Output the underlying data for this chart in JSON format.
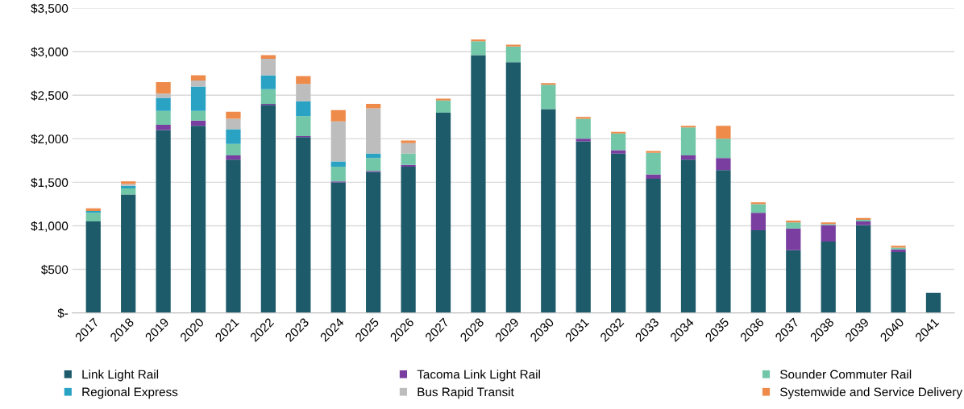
{
  "chart_data": {
    "type": "bar",
    "stacked": true,
    "grid": "y",
    "legend": "bottom",
    "categories": [
      "2017",
      "2018",
      "2019",
      "2020",
      "2021",
      "2022",
      "2023",
      "2024",
      "2025",
      "2026",
      "2027",
      "2028",
      "2029",
      "2030",
      "2031",
      "2032",
      "2033",
      "2034",
      "2035",
      "2036",
      "2037",
      "2038",
      "2039",
      "2040",
      "2041"
    ],
    "ylim": [
      0,
      3500
    ],
    "yticks": [
      {
        "value": 0,
        "label": "$-"
      },
      {
        "value": 500,
        "label": "$500"
      },
      {
        "value": 1000,
        "label": "$1,000"
      },
      {
        "value": 1500,
        "label": "$1,500"
      },
      {
        "value": 2000,
        "label": "$2,000"
      },
      {
        "value": 2500,
        "label": "$2,500"
      },
      {
        "value": 3000,
        "label": "$3,000"
      },
      {
        "value": 3500,
        "label": "$3,500"
      }
    ],
    "series": [
      {
        "name": "Link Light Rail",
        "color": "#1d5a6a",
        "values": [
          1050,
          1360,
          2100,
          2150,
          1760,
          2390,
          2020,
          1500,
          1620,
          1680,
          2300,
          2960,
          2880,
          2340,
          1970,
          1830,
          1540,
          1760,
          1640,
          950,
          720,
          820,
          1010,
          700,
          230
        ]
      },
      {
        "name": "Tacoma Link Light Rail",
        "color": "#7a3ea0",
        "values": [
          null,
          null,
          60,
          60,
          50,
          10,
          10,
          10,
          10,
          20,
          0,
          0,
          0,
          0,
          30,
          40,
          50,
          50,
          140,
          200,
          250,
          190,
          40,
          30,
          0
        ]
      },
      {
        "name": "Sounder Commuter Rail",
        "color": "#72c7a8",
        "values": [
          100,
          70,
          160,
          110,
          130,
          170,
          230,
          170,
          150,
          130,
          140,
          160,
          180,
          280,
          230,
          190,
          250,
          320,
          220,
          100,
          70,
          10,
          20,
          20,
          0
        ]
      },
      {
        "name": "Regional Express",
        "color": "#2aa2c4",
        "values": [
          20,
          30,
          150,
          280,
          170,
          160,
          170,
          60,
          50,
          0,
          0,
          0,
          0,
          0,
          0,
          0,
          0,
          0,
          0,
          0,
          0,
          0,
          0,
          0,
          0
        ]
      },
      {
        "name": "Bus Rapid Transit",
        "color": "#bdbdbd",
        "values": [
          null,
          20,
          50,
          70,
          120,
          190,
          200,
          460,
          520,
          120,
          0,
          0,
          0,
          0,
          0,
          0,
          0,
          0,
          0,
          0,
          0,
          0,
          0,
          0,
          0
        ]
      },
      {
        "name": "Systemwide and Service Delivery",
        "color": "#ee8a4a",
        "values": [
          30,
          30,
          130,
          60,
          80,
          40,
          90,
          130,
          50,
          30,
          20,
          20,
          20,
          20,
          20,
          20,
          20,
          20,
          150,
          20,
          20,
          20,
          20,
          20,
          0
        ]
      }
    ]
  }
}
